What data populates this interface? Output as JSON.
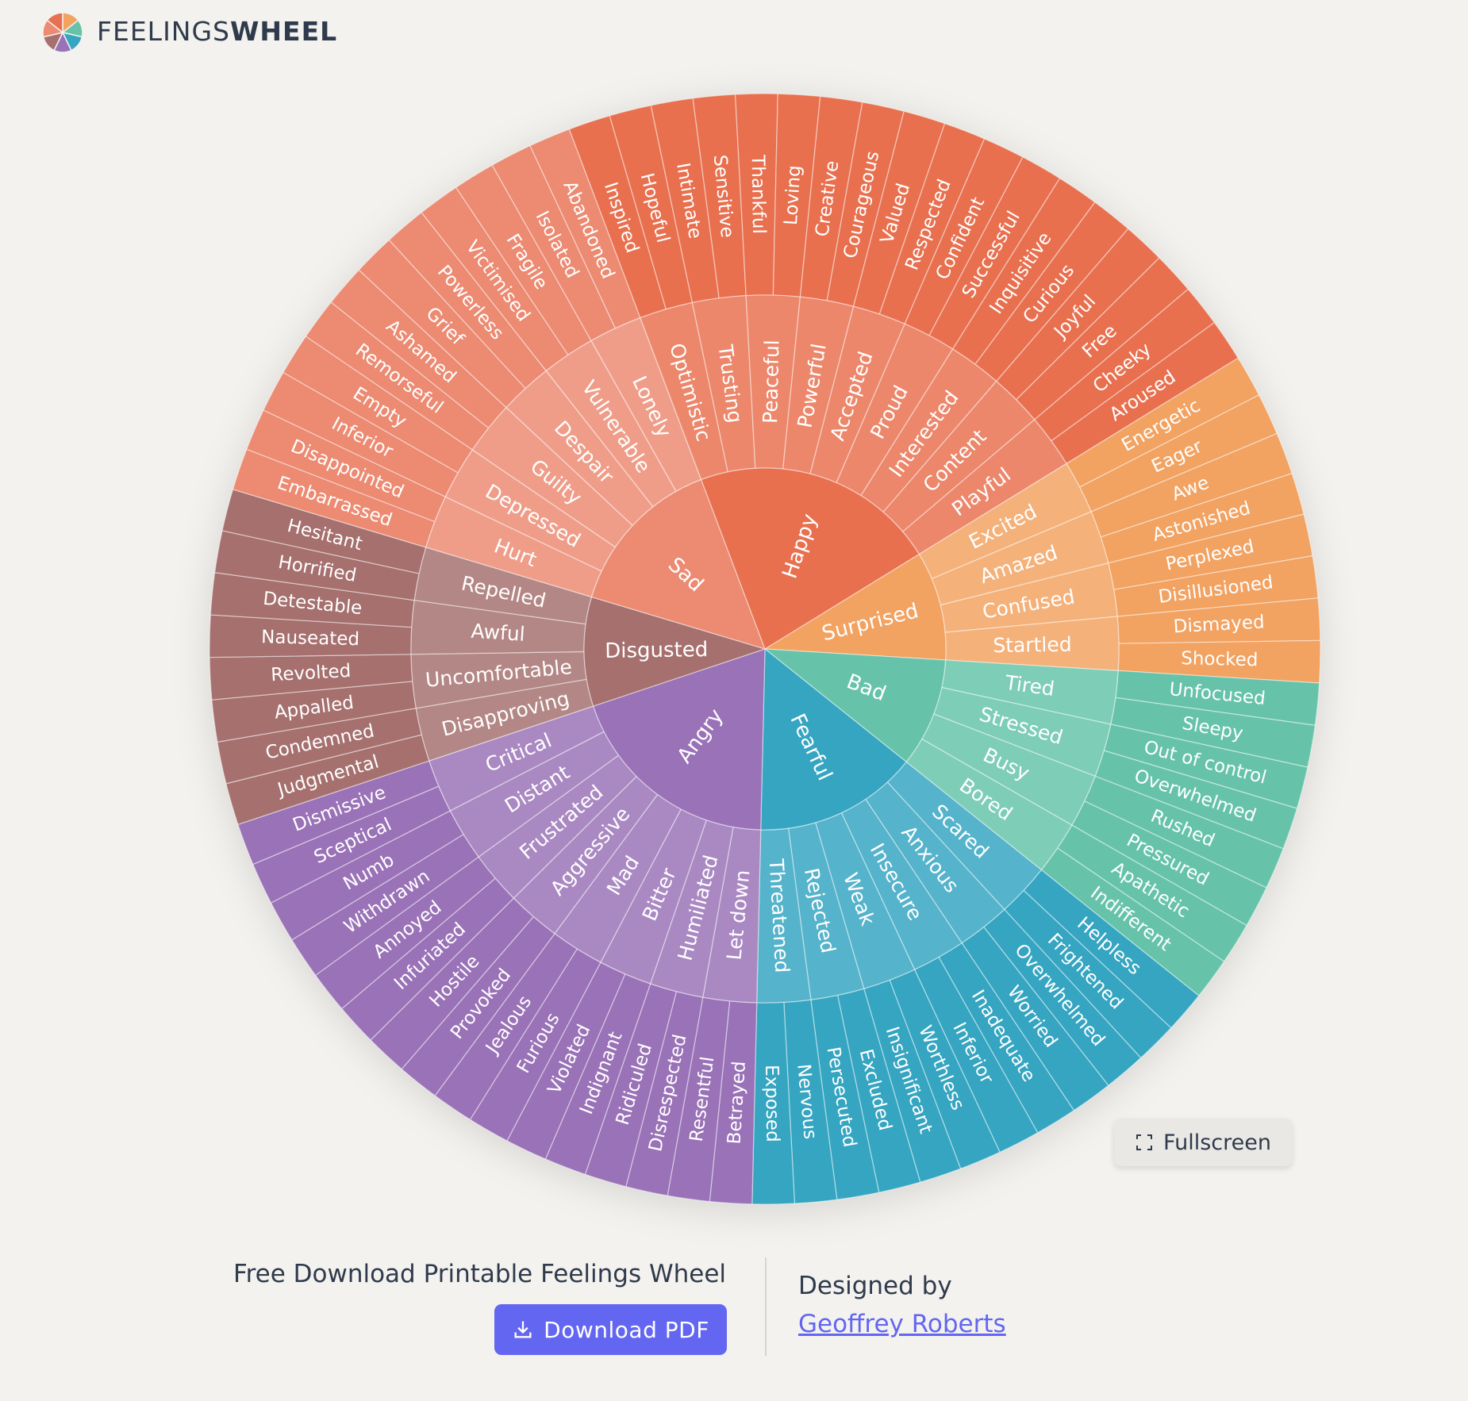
{
  "header": {
    "brand_light": "FEELINGS",
    "brand_bold": "WHEEL"
  },
  "wheel": {
    "emotions": [
      {
        "label": "Surprised",
        "color": "#f2a261",
        "feelings": [
          {
            "label": "Excited",
            "words": [
              "Energetic",
              "Eager"
            ]
          },
          {
            "label": "Amazed",
            "words": [
              "Awe",
              "Astonished"
            ]
          },
          {
            "label": "Confused",
            "words": [
              "Perplexed",
              "Disillusioned"
            ]
          },
          {
            "label": "Startled",
            "words": [
              "Dismayed",
              "Shocked"
            ]
          }
        ]
      },
      {
        "label": "Bad",
        "color": "#66c3a9",
        "feelings": [
          {
            "label": "Tired",
            "words": [
              "Unfocused",
              "Sleepy"
            ]
          },
          {
            "label": "Stressed",
            "words": [
              "Out of control",
              "Overwhelmed"
            ]
          },
          {
            "label": "Busy",
            "words": [
              "Rushed",
              "Pressured"
            ]
          },
          {
            "label": "Bored",
            "words": [
              "Apathetic",
              "Indifferent"
            ]
          }
        ]
      },
      {
        "label": "Fearful",
        "color": "#35a5c1",
        "feelings": [
          {
            "label": "Scared",
            "words": [
              "Helpless",
              "Frightened"
            ]
          },
          {
            "label": "Anxious",
            "words": [
              "Overwhelmed",
              "Worried"
            ]
          },
          {
            "label": "Insecure",
            "words": [
              "Inadequate",
              "Inferior"
            ]
          },
          {
            "label": "Weak",
            "words": [
              "Worthless",
              "Insignificant"
            ]
          },
          {
            "label": "Rejected",
            "words": [
              "Excluded",
              "Persecuted"
            ]
          },
          {
            "label": "Threatened",
            "words": [
              "Nervous",
              "Exposed"
            ]
          }
        ]
      },
      {
        "label": "Angry",
        "color": "#9a72b7",
        "feelings": [
          {
            "label": "Let down",
            "words": [
              "Betrayed",
              "Resentful"
            ]
          },
          {
            "label": "Humiliated",
            "words": [
              "Disrespected",
              "Ridiculed"
            ]
          },
          {
            "label": "Bitter",
            "words": [
              "Indignant",
              "Violated"
            ]
          },
          {
            "label": "Mad",
            "words": [
              "Furious",
              "Jealous"
            ]
          },
          {
            "label": "Aggressive",
            "words": [
              "Provoked",
              "Hostile"
            ]
          },
          {
            "label": "Frustrated",
            "words": [
              "Infuriated",
              "Annoyed"
            ]
          },
          {
            "label": "Distant",
            "words": [
              "Withdrawn",
              "Numb"
            ]
          },
          {
            "label": "Critical",
            "words": [
              "Sceptical",
              "Dismissive"
            ]
          }
        ]
      },
      {
        "label": "Disgusted",
        "color": "#a5706e",
        "feelings": [
          {
            "label": "Disapproving",
            "words": [
              "Judgmental",
              "Condemned"
            ]
          },
          {
            "label": "Uncomfortable",
            "words": [
              "Appalled",
              "Revolted"
            ]
          },
          {
            "label": "Awful",
            "words": [
              "Nauseated",
              "Detestable"
            ]
          },
          {
            "label": "Repelled",
            "words": [
              "Horrified",
              "Hesitant"
            ]
          }
        ]
      },
      {
        "label": "Sad",
        "color": "#ec8a72",
        "feelings": [
          {
            "label": "Hurt",
            "words": [
              "Embarrassed",
              "Disappointed"
            ]
          },
          {
            "label": "Depressed",
            "words": [
              "Inferior",
              "Empty"
            ]
          },
          {
            "label": "Guilty",
            "words": [
              "Remorseful",
              "Ashamed"
            ]
          },
          {
            "label": "Despair",
            "words": [
              "Grief",
              "Powerless"
            ]
          },
          {
            "label": "Vulnerable",
            "words": [
              "Victimised",
              "Fragile"
            ]
          },
          {
            "label": "Lonely",
            "words": [
              "Isolated",
              "Abandoned"
            ]
          }
        ]
      },
      {
        "label": "Happy",
        "color": "#e8704f",
        "feelings": [
          {
            "label": "Optimistic",
            "words": [
              "Inspired",
              "Hopeful"
            ]
          },
          {
            "label": "Trusting",
            "words": [
              "Intimate",
              "Sensitive"
            ]
          },
          {
            "label": "Peaceful",
            "words": [
              "Thankful",
              "Loving"
            ]
          },
          {
            "label": "Powerful",
            "words": [
              "Creative",
              "Courageous"
            ]
          },
          {
            "label": "Accepted",
            "words": [
              "Valued",
              "Respected"
            ]
          },
          {
            "label": "Proud",
            "words": [
              "Confident",
              "Successful"
            ]
          },
          {
            "label": "Interested",
            "words": [
              "Inquisitive",
              "Curious"
            ]
          },
          {
            "label": "Content",
            "words": [
              "Joyful",
              "Free"
            ]
          },
          {
            "label": "Playful",
            "words": [
              "Cheeky",
              "Aroused"
            ]
          }
        ]
      }
    ]
  },
  "fullscreen_button": "Fullscreen",
  "footer": {
    "download_heading": "Free Download Printable Feelings Wheel",
    "download_button": "Download PDF",
    "credit_label": "Designed by",
    "credit_name": "Geoffrey Roberts"
  }
}
